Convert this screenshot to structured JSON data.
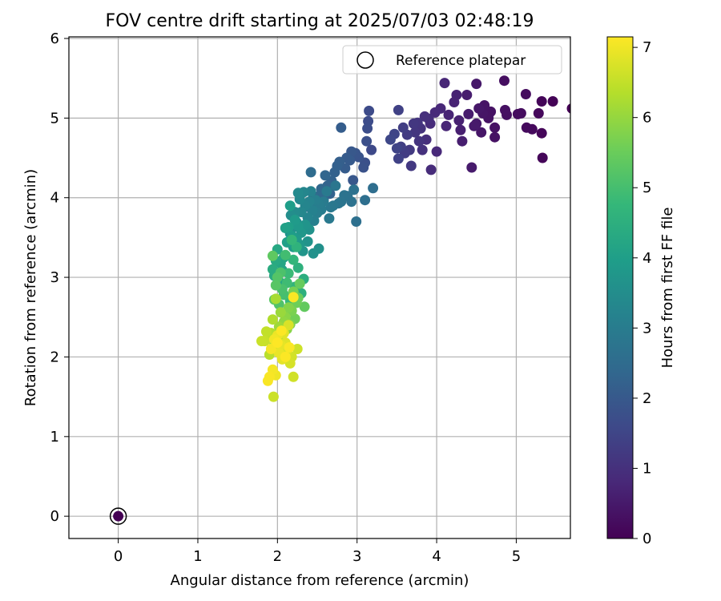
{
  "chart_data": {
    "type": "scatter",
    "title": "FOV centre drift starting at 2025/07/03 02:48:19",
    "xlabel": "Angular distance from reference (arcmin)",
    "ylabel": "Rotation from reference (arcmin)",
    "xlim": [
      -0.62,
      5.68
    ],
    "ylim": [
      -0.28,
      6.02
    ],
    "xticks": [
      "0",
      "1",
      "2",
      "3",
      "4",
      "5"
    ],
    "yticks": [
      "0",
      "1",
      "2",
      "3",
      "4",
      "5",
      "6"
    ],
    "grid": true,
    "legend": {
      "label": "Reference platepar",
      "placement": "upper right"
    },
    "reference_point": {
      "x": 0,
      "y": 0
    },
    "colorbar": {
      "label": "Hours from first FF file",
      "colormap": "viridis",
      "range": [
        0,
        7.15
      ],
      "ticks": [
        "0",
        "1",
        "2",
        "3",
        "4",
        "5",
        "6",
        "7"
      ]
    },
    "colormap_stops": [
      "#440154",
      "#482878",
      "#3e4989",
      "#31688e",
      "#26828e",
      "#1f9e89",
      "#35b779",
      "#6ece58",
      "#b5de2b",
      "#fde725"
    ],
    "series": [
      {
        "points": [
          [
            5.7,
            5.12,
            0.02
          ],
          [
            5.46,
            5.21,
            0.05
          ],
          [
            5.32,
            5.21,
            0.08
          ],
          [
            5.32,
            4.81,
            0.1
          ],
          [
            5.33,
            4.5,
            0.12
          ],
          [
            5.28,
            5.06,
            0.15
          ],
          [
            5.2,
            4.86,
            0.17
          ],
          [
            5.13,
            4.88,
            0.19
          ],
          [
            5.12,
            5.3,
            0.21
          ],
          [
            5.06,
            5.06,
            0.23
          ],
          [
            5.02,
            5.05,
            0.25
          ],
          [
            4.85,
            5.47,
            0.27
          ],
          [
            4.88,
            5.04,
            0.29
          ],
          [
            4.86,
            5.1,
            0.3
          ],
          [
            4.73,
            4.88,
            0.32
          ],
          [
            4.73,
            4.76,
            0.33
          ],
          [
            4.68,
            5.08,
            0.35
          ],
          [
            4.65,
            5.0,
            0.36
          ],
          [
            4.6,
            5.16,
            0.38
          ],
          [
            4.58,
            5.06,
            0.4
          ],
          [
            4.56,
            4.82,
            0.42
          ],
          [
            4.53,
            5.12,
            0.44
          ],
          [
            4.5,
            5.43,
            0.46
          ],
          [
            4.5,
            4.93,
            0.48
          ],
          [
            4.47,
            4.9,
            0.5
          ],
          [
            4.44,
            4.38,
            0.52
          ],
          [
            4.4,
            5.05,
            0.55
          ],
          [
            4.38,
            5.29,
            0.57
          ],
          [
            4.32,
            4.71,
            0.6
          ],
          [
            4.3,
            4.85,
            0.62
          ],
          [
            4.28,
            4.97,
            0.65
          ],
          [
            4.25,
            5.29,
            0.68
          ],
          [
            4.22,
            5.2,
            0.7
          ],
          [
            4.15,
            5.04,
            0.73
          ],
          [
            4.12,
            4.9,
            0.75
          ],
          [
            4.1,
            5.44,
            0.78
          ],
          [
            4.05,
            5.12,
            0.8
          ],
          [
            4.0,
            4.58,
            0.83
          ],
          [
            3.98,
            5.07,
            0.85
          ],
          [
            3.93,
            4.35,
            0.88
          ],
          [
            3.92,
            4.93,
            0.9
          ],
          [
            3.9,
            4.99,
            0.93
          ],
          [
            3.87,
            4.73,
            0.96
          ],
          [
            3.85,
            5.02,
            0.99
          ],
          [
            3.82,
            4.6,
            1.02
          ],
          [
            3.8,
            4.87,
            1.05
          ],
          [
            3.78,
            4.71,
            1.08
          ],
          [
            3.76,
            4.94,
            1.1
          ],
          [
            3.73,
            4.82,
            1.13
          ],
          [
            3.71,
            4.93,
            1.16
          ],
          [
            3.68,
            4.4,
            1.2
          ],
          [
            3.66,
            4.6,
            1.23
          ],
          [
            3.63,
            4.79,
            1.26
          ],
          [
            3.6,
            4.56,
            1.3
          ],
          [
            3.58,
            4.88,
            1.33
          ],
          [
            3.55,
            4.64,
            1.36
          ],
          [
            3.52,
            5.1,
            1.4
          ],
          [
            3.52,
            4.49,
            1.43
          ],
          [
            3.5,
            4.62,
            1.47
          ],
          [
            3.47,
            4.8,
            1.5
          ],
          [
            3.42,
            4.73,
            1.55
          ],
          [
            3.18,
            4.6,
            1.6
          ],
          [
            3.15,
            5.09,
            1.63
          ],
          [
            3.14,
            4.96,
            1.67
          ],
          [
            3.13,
            4.87,
            1.7
          ],
          [
            3.12,
            4.71,
            1.74
          ],
          [
            3.1,
            4.44,
            1.78
          ],
          [
            3.08,
            4.38,
            1.82
          ],
          [
            3.02,
            4.51,
            1.86
          ],
          [
            2.98,
            4.56,
            1.9
          ],
          [
            2.95,
            4.22,
            1.94
          ],
          [
            2.93,
            4.58,
            1.98
          ],
          [
            2.91,
            4.47,
            2.02
          ],
          [
            2.87,
            4.5,
            2.05
          ],
          [
            2.85,
            4.37,
            2.08
          ],
          [
            2.8,
            4.88,
            2.11
          ],
          [
            2.78,
            4.45,
            2.14
          ],
          [
            2.75,
            4.4,
            2.17
          ],
          [
            2.72,
            4.32,
            2.2
          ],
          [
            2.68,
            4.21,
            2.23
          ],
          [
            2.66,
            4.05,
            2.26
          ],
          [
            2.63,
            4.15,
            2.29
          ],
          [
            2.6,
            4.28,
            2.32
          ],
          [
            2.58,
            3.98,
            2.35
          ],
          [
            2.55,
            4.11,
            2.38
          ],
          [
            2.52,
            4.02,
            2.41
          ],
          [
            2.48,
            3.92,
            2.44
          ],
          [
            2.45,
            4.02,
            2.47
          ],
          [
            2.42,
            4.32,
            2.5
          ],
          [
            2.4,
            3.88,
            2.53
          ],
          [
            3.2,
            4.12,
            2.56
          ],
          [
            3.1,
            3.97,
            2.59
          ],
          [
            2.99,
            3.7,
            2.62
          ],
          [
            2.96,
            4.1,
            2.65
          ],
          [
            2.93,
            3.95,
            2.68
          ],
          [
            2.88,
            4.02,
            2.7
          ],
          [
            2.84,
            4.03,
            2.73
          ],
          [
            2.8,
            3.95,
            2.76
          ],
          [
            2.77,
            3.93,
            2.79
          ],
          [
            2.73,
            4.15,
            2.82
          ],
          [
            2.7,
            3.9,
            2.85
          ],
          [
            2.67,
            3.88,
            2.88
          ],
          [
            2.65,
            3.74,
            2.91
          ],
          [
            2.62,
            4.08,
            2.94
          ],
          [
            2.58,
            3.95,
            2.97
          ],
          [
            2.55,
            3.85,
            3.0
          ],
          [
            2.52,
            3.92,
            3.03
          ],
          [
            2.5,
            3.81,
            3.06
          ],
          [
            2.48,
            3.97,
            3.09
          ],
          [
            2.46,
            3.71,
            3.12
          ],
          [
            2.44,
            3.84,
            3.15
          ],
          [
            2.42,
            4.08,
            3.18
          ],
          [
            2.4,
            3.95,
            3.21
          ],
          [
            2.38,
            3.75,
            3.24
          ],
          [
            2.35,
            3.9,
            3.27
          ],
          [
            2.33,
            4.07,
            3.3
          ],
          [
            2.3,
            3.82,
            3.33
          ],
          [
            2.28,
            3.98,
            3.36
          ],
          [
            2.26,
            4.06,
            3.4
          ],
          [
            2.24,
            3.69,
            3.43
          ],
          [
            2.22,
            3.82,
            3.46
          ],
          [
            2.2,
            3.63,
            3.49
          ],
          [
            2.17,
            3.78,
            3.52
          ],
          [
            2.16,
            3.55,
            3.55
          ],
          [
            2.52,
            3.36,
            3.58
          ],
          [
            2.45,
            3.3,
            3.61
          ],
          [
            2.4,
            3.6,
            3.64
          ],
          [
            2.38,
            3.45,
            3.67
          ],
          [
            2.35,
            3.66,
            3.7
          ],
          [
            2.32,
            3.33,
            3.73
          ],
          [
            2.3,
            3.56,
            3.76
          ],
          [
            2.28,
            3.41,
            3.79
          ],
          [
            2.26,
            3.64,
            3.82
          ],
          [
            2.24,
            3.48,
            3.85
          ],
          [
            2.22,
            3.72,
            3.88
          ],
          [
            2.2,
            3.38,
            3.91
          ],
          [
            2.18,
            3.52,
            3.94
          ],
          [
            2.16,
            3.9,
            3.97
          ],
          [
            2.14,
            3.63,
            4.0
          ],
          [
            2.12,
            3.44,
            4.04
          ],
          [
            2.1,
            3.62,
            4.08
          ],
          [
            2.08,
            3.25,
            4.12
          ],
          [
            2.06,
            3.09,
            4.16
          ],
          [
            2.04,
            3.18,
            4.2
          ],
          [
            2.02,
            2.95,
            4.24
          ],
          [
            2.0,
            3.35,
            4.28
          ],
          [
            1.98,
            3.21,
            4.32
          ],
          [
            1.96,
            3.02,
            4.36
          ],
          [
            1.94,
            3.1,
            4.4
          ],
          [
            2.33,
            2.98,
            4.45
          ],
          [
            2.3,
            2.8,
            4.5
          ],
          [
            2.26,
            3.12,
            4.55
          ],
          [
            2.24,
            3.38,
            4.6
          ],
          [
            2.22,
            2.88,
            4.65
          ],
          [
            2.2,
            3.22,
            4.7
          ],
          [
            2.18,
            3.47,
            4.75
          ],
          [
            2.16,
            2.7,
            4.8
          ],
          [
            2.14,
            3.05,
            4.85
          ],
          [
            2.12,
            2.93,
            4.9
          ],
          [
            2.1,
            3.28,
            4.95
          ],
          [
            2.08,
            2.78,
            5.0
          ],
          [
            2.06,
            2.85,
            5.05
          ],
          [
            2.04,
            3.06,
            5.1
          ],
          [
            2.02,
            2.66,
            5.15
          ],
          [
            2.0,
            3.0,
            5.2
          ],
          [
            1.98,
            2.9,
            5.25
          ],
          [
            1.96,
            2.72,
            5.3
          ],
          [
            1.94,
            3.27,
            5.35
          ],
          [
            2.34,
            2.63,
            5.4
          ],
          [
            2.28,
            2.92,
            5.45
          ],
          [
            2.26,
            2.74,
            5.5
          ],
          [
            2.24,
            2.68,
            5.55
          ],
          [
            2.22,
            2.48,
            5.6
          ],
          [
            2.2,
            2.82,
            5.65
          ],
          [
            2.18,
            2.58,
            5.7
          ],
          [
            2.16,
            2.41,
            5.75
          ],
          [
            2.14,
            2.62,
            5.8
          ],
          [
            2.12,
            2.35,
            5.85
          ],
          [
            2.1,
            2.5,
            5.9
          ],
          [
            2.08,
            2.44,
            5.95
          ],
          [
            2.06,
            2.28,
            6.0
          ],
          [
            2.04,
            2.56,
            6.05
          ],
          [
            2.02,
            2.38,
            6.1
          ],
          [
            2.0,
            2.21,
            6.15
          ],
          [
            1.98,
            2.73,
            6.2
          ],
          [
            1.96,
            2.15,
            6.25
          ],
          [
            1.94,
            2.47,
            6.3
          ],
          [
            1.92,
            2.3,
            6.35
          ],
          [
            1.9,
            2.03,
            6.4
          ],
          [
            1.88,
            2.25,
            6.45
          ],
          [
            1.86,
            2.32,
            6.5
          ],
          [
            1.84,
            2.2,
            6.55
          ],
          [
            1.8,
            2.2,
            6.58
          ],
          [
            1.95,
            1.5,
            6.6
          ],
          [
            2.25,
            2.1,
            6.62
          ],
          [
            2.2,
            1.75,
            6.65
          ],
          [
            2.18,
            2.0,
            6.68
          ],
          [
            2.16,
            1.92,
            6.72
          ],
          [
            2.14,
            2.4,
            6.75
          ],
          [
            2.12,
            2.08,
            6.78
          ],
          [
            2.1,
            2.18,
            6.81
          ],
          [
            2.08,
            2.3,
            6.84
          ],
          [
            2.06,
            1.97,
            6.87
          ],
          [
            2.04,
            2.15,
            6.9
          ],
          [
            2.02,
            2.05,
            6.93
          ],
          [
            2.0,
            2.27,
            6.96
          ],
          [
            1.98,
            1.77,
            6.99
          ],
          [
            1.96,
            2.22,
            7.02
          ],
          [
            1.94,
            1.84,
            7.05
          ],
          [
            1.92,
            2.1,
            7.07
          ],
          [
            1.9,
            1.75,
            7.09
          ],
          [
            1.88,
            1.7,
            7.1
          ],
          [
            2.2,
            2.75,
            7.11
          ],
          [
            2.15,
            2.12,
            7.12
          ],
          [
            2.1,
            2.0,
            7.13
          ],
          [
            2.05,
            2.33,
            7.14
          ],
          [
            2.0,
            2.18,
            7.15
          ]
        ]
      }
    ]
  }
}
